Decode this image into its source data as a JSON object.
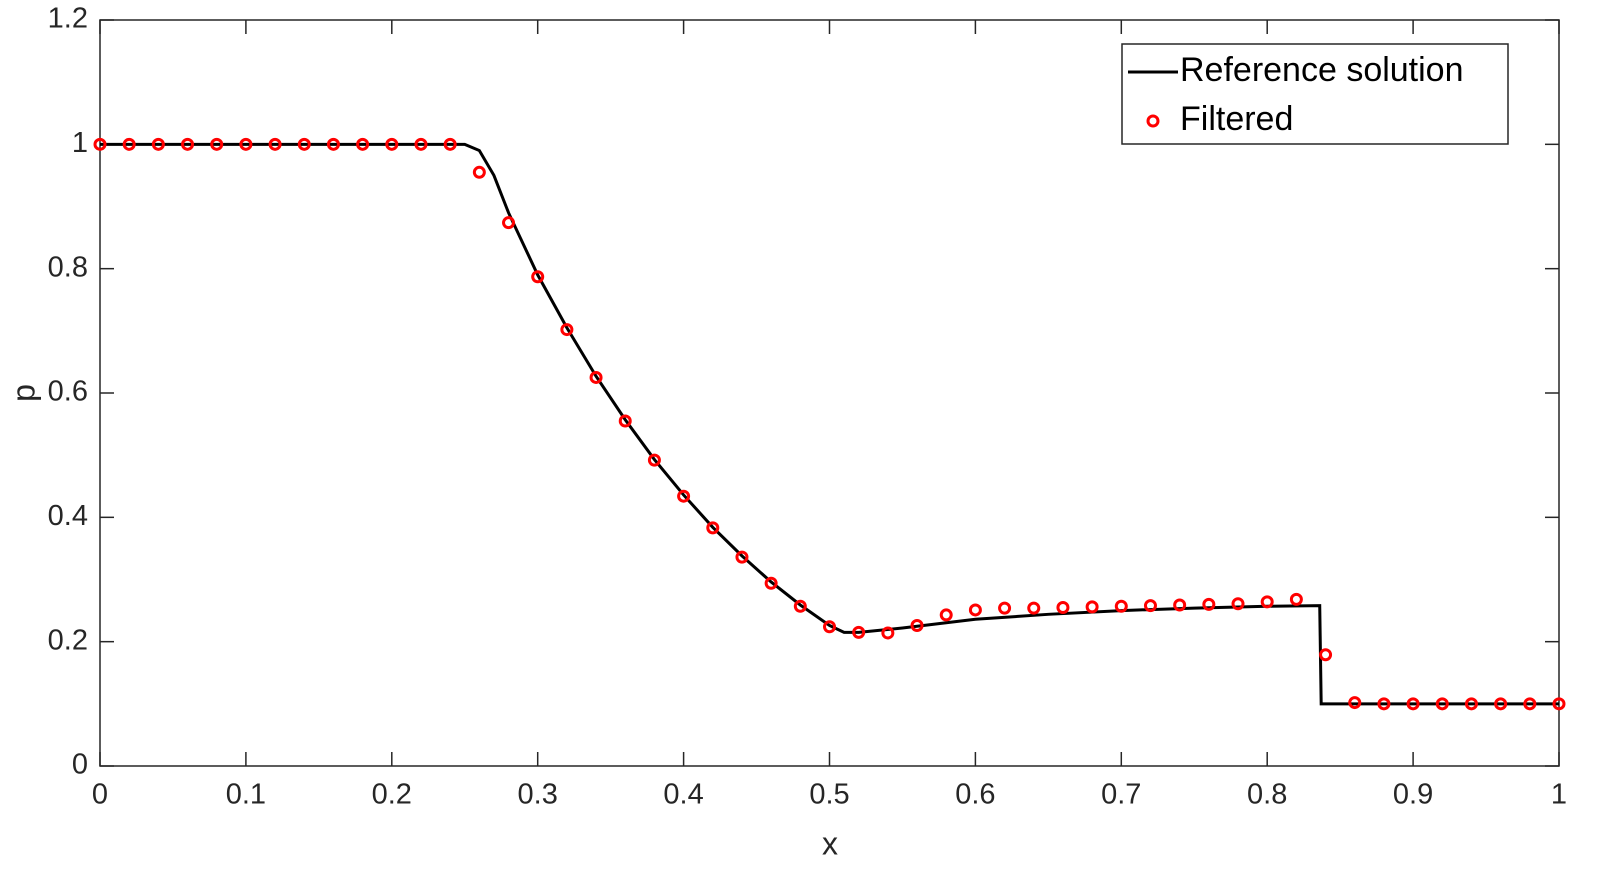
{
  "chart_data": {
    "type": "line",
    "xlabel": "x",
    "ylabel": "p",
    "xlim": [
      0,
      1
    ],
    "ylim": [
      0,
      1.2
    ],
    "xticks": [
      0,
      0.1,
      0.2,
      0.3,
      0.4,
      0.5,
      0.6,
      0.7,
      0.8,
      0.9,
      1
    ],
    "yticks": [
      0,
      0.2,
      0.4,
      0.6,
      0.8,
      1,
      1.2
    ],
    "grid": false,
    "legend": "northeast",
    "series": [
      {
        "name": "Reference solution",
        "color": "#000000",
        "style": "line",
        "x": [
          0,
          0.25,
          0.26,
          0.27,
          0.28,
          0.3,
          0.32,
          0.34,
          0.36,
          0.38,
          0.4,
          0.42,
          0.44,
          0.46,
          0.48,
          0.5,
          0.51,
          0.52,
          0.55,
          0.6,
          0.65,
          0.7,
          0.75,
          0.8,
          0.836,
          0.837,
          1
        ],
        "values": [
          1,
          1,
          0.99,
          0.95,
          0.89,
          0.79,
          0.705,
          0.627,
          0.557,
          0.493,
          0.436,
          0.384,
          0.338,
          0.296,
          0.259,
          0.226,
          0.215,
          0.215,
          0.222,
          0.236,
          0.244,
          0.25,
          0.254,
          0.257,
          0.258,
          0.1,
          0.1
        ]
      },
      {
        "name": "Filtered",
        "color": "#ff0000",
        "style": "marker",
        "x": [
          0,
          0.02,
          0.04,
          0.06,
          0.08,
          0.1,
          0.12,
          0.14,
          0.16,
          0.18,
          0.2,
          0.22,
          0.24,
          0.26,
          0.28,
          0.3,
          0.32,
          0.34,
          0.36,
          0.38,
          0.4,
          0.42,
          0.44,
          0.46,
          0.48,
          0.5,
          0.52,
          0.54,
          0.56,
          0.58,
          0.6,
          0.62,
          0.64,
          0.66,
          0.68,
          0.7,
          0.72,
          0.74,
          0.76,
          0.78,
          0.8,
          0.82,
          0.84,
          0.86,
          0.88,
          0.9,
          0.92,
          0.94,
          0.96,
          0.98,
          1
        ],
        "values": [
          1,
          1,
          1,
          1,
          1,
          1,
          1,
          1,
          1,
          1,
          1,
          1,
          1,
          0.955,
          0.874,
          0.787,
          0.702,
          0.625,
          0.555,
          0.492,
          0.434,
          0.383,
          0.336,
          0.294,
          0.257,
          0.224,
          0.215,
          0.214,
          0.226,
          0.243,
          0.251,
          0.254,
          0.254,
          0.255,
          0.256,
          0.257,
          0.258,
          0.259,
          0.26,
          0.261,
          0.264,
          0.268,
          0.179,
          0.102,
          0.1,
          0.1,
          0.1,
          0.1,
          0.1,
          0.1,
          0.1
        ]
      }
    ]
  }
}
